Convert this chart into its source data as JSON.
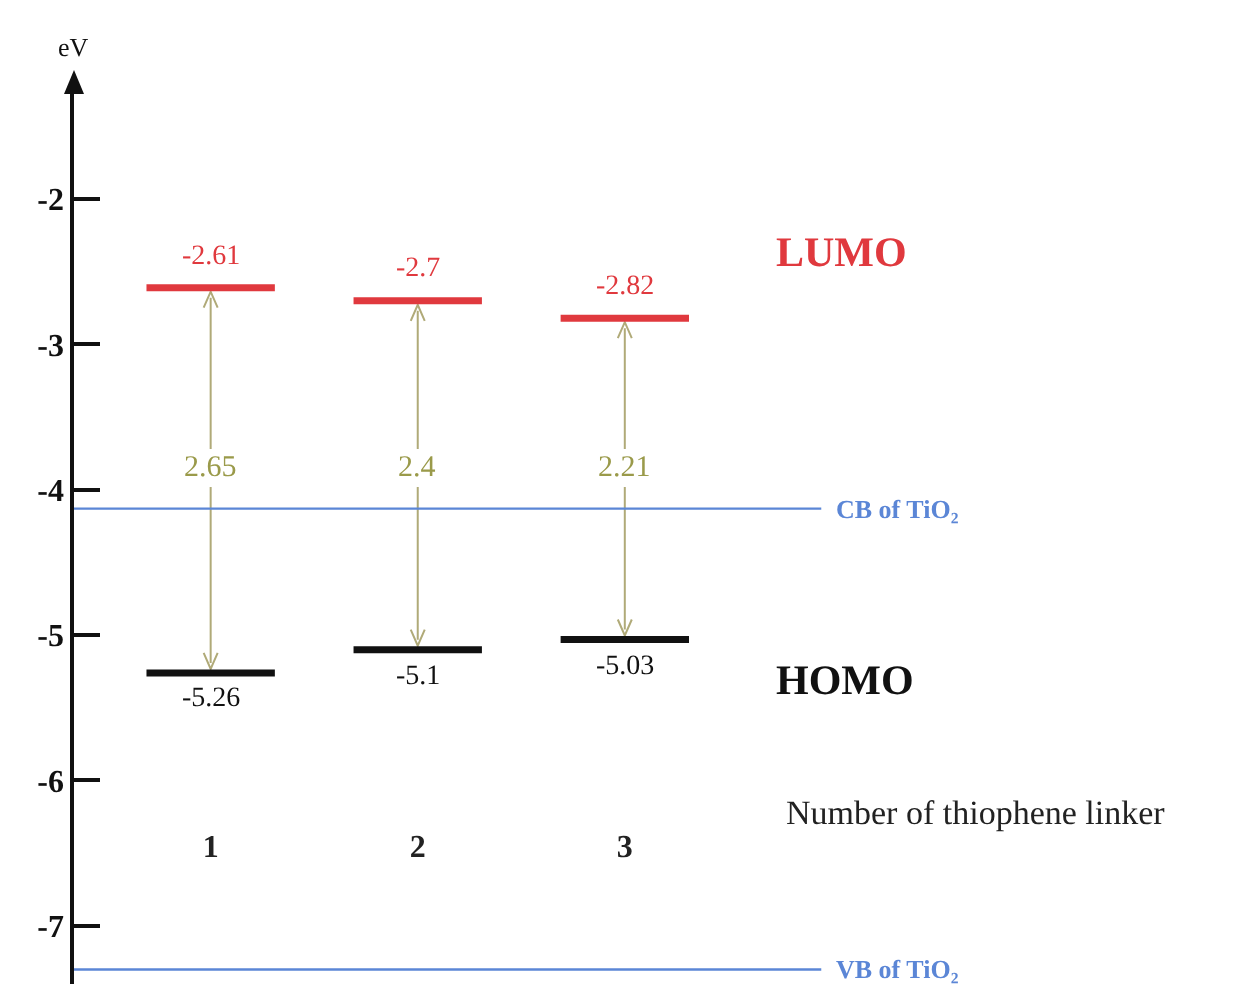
{
  "chart_data": {
    "type": "line",
    "ylabel": "eV",
    "xlabel": "Number of thiophene linker",
    "series": [
      {
        "name": "LUMO",
        "color": "#e0393e",
        "x": [
          0.69,
          1,
          1.31,
          1.5,
          1.69,
          2,
          2.31,
          2.5,
          2.69,
          3,
          3.31
        ],
        "values": [
          -2.61,
          -2.61,
          -2.61,
          null,
          -2.7,
          -2.7,
          -2.7,
          null,
          -2.82,
          -2.82,
          -2.82
        ],
        "value_labels": [
          null,
          "-2.61",
          null,
          null,
          null,
          "-2.7",
          null,
          null,
          null,
          "-2.82",
          null
        ]
      },
      {
        "name": "HOMO",
        "color": "#111111",
        "x": [
          0.69,
          1,
          1.31,
          1.5,
          1.69,
          2,
          2.31,
          2.5,
          2.69,
          3,
          3.31
        ],
        "values": [
          -5.26,
          -5.26,
          -5.26,
          null,
          -5.1,
          -5.1,
          -5.1,
          null,
          -5.03,
          -5.03,
          -5.03
        ],
        "value_labels": [
          null,
          "-5.26",
          null,
          null,
          null,
          "-5.1",
          null,
          null,
          null,
          "-5.03",
          null
        ]
      }
    ],
    "annotations": [
      {
        "text": "2.65",
        "x": 1,
        "y": -3.85
      },
      {
        "text": "2.4",
        "x": 2,
        "y": -3.85
      },
      {
        "text": "2.21",
        "x": 3,
        "y": -3.85
      }
    ],
    "ref_lines": [
      {
        "axis": "y",
        "value": -4.13,
        "label": "CB of TiO₂",
        "color": "#5b86d6"
      },
      {
        "axis": "y",
        "value": -7.3,
        "label": "VB of TiO₂",
        "color": "#5b86d6"
      }
    ],
    "xlim": [
      0.34,
      3.95
    ],
    "xticks": [
      1,
      2,
      3
    ],
    "ylim": [
      -7.4,
      -1.25
    ],
    "yticks": [
      -2,
      -3,
      -4,
      -5,
      -6,
      -7
    ],
    "legend": false
  }
}
